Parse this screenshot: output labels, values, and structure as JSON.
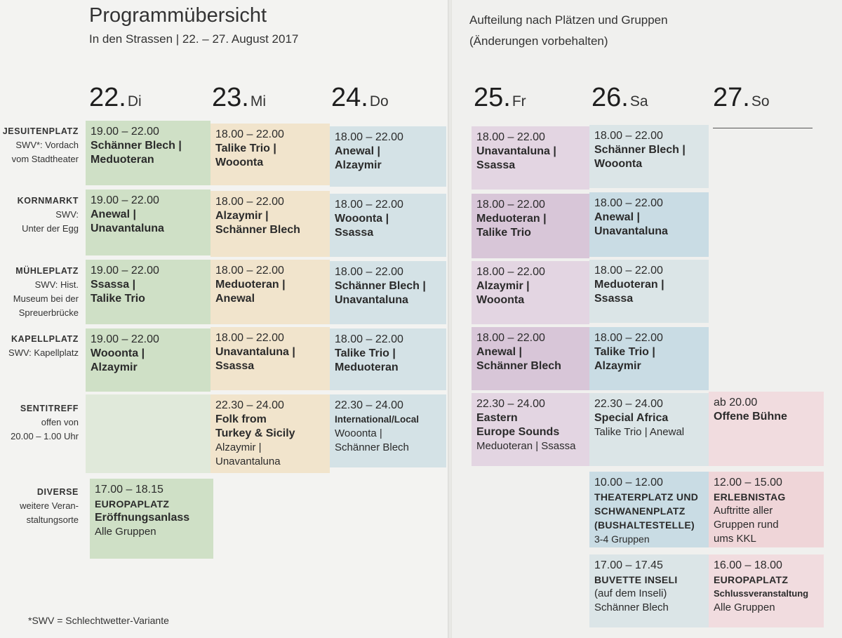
{
  "header": {
    "title": "Programmübersicht",
    "subtitle": "In den Strassen | 22. – 27. August 2017",
    "right_line1": "Aufteilung nach Plätzen und Gruppen",
    "right_line2": "(Änderungen vorbehalten)"
  },
  "days": [
    {
      "num": "22.",
      "name": "Di"
    },
    {
      "num": "23.",
      "name": "Mi"
    },
    {
      "num": "24.",
      "name": "Do"
    },
    {
      "num": "25.",
      "name": "Fr"
    },
    {
      "num": "26.",
      "name": "Sa"
    },
    {
      "num": "27.",
      "name": "So"
    }
  ],
  "venues": [
    {
      "name": "JESUITENPLATZ",
      "l1": "SWV*: Vordach",
      "l2": "vom Stadtheater",
      "l3": ""
    },
    {
      "name": "KORNMARKT",
      "l1": "SWV:",
      "l2": "Unter der Egg",
      "l3": ""
    },
    {
      "name": "MÜHLEPLATZ",
      "l1": "SWV: Hist.",
      "l2": "Museum bei der",
      "l3": "Spreuerbrücke"
    },
    {
      "name": "KAPELLPLATZ",
      "l1": "SWV: Kapellplatz",
      "l2": "",
      "l3": ""
    },
    {
      "name": "SENTITREFF",
      "l1": "offen von",
      "l2": "20.00 – 1.00 Uhr",
      "l3": ""
    },
    {
      "name": "DIVERSE",
      "l1": "weitere Veran-",
      "l2": "staltungsorte",
      "l3": ""
    }
  ],
  "cells": {
    "r1": [
      {
        "time": "19.00 – 22.00",
        "a": "Schänner Blech |",
        "b": "Meduoteran"
      },
      {
        "time": "18.00 – 22.00",
        "a": "Talike Trio |",
        "b": "Wooonta"
      },
      {
        "time": "18.00 – 22.00",
        "a": "Anewal |",
        "b": "Alzaymir"
      },
      {
        "time": "18.00 – 22.00",
        "a": "Unavantaluna |",
        "b": "Ssassa"
      },
      {
        "time": "18.00 – 22.00",
        "a": "Schänner Blech |",
        "b": "Wooonta"
      }
    ],
    "r2": [
      {
        "time": "19.00 – 22.00",
        "a": "Anewal |",
        "b": "Unavantaluna"
      },
      {
        "time": "18.00 – 22.00",
        "a": "Alzaymir |",
        "b": "Schänner Blech"
      },
      {
        "time": "18.00 – 22.00",
        "a": "Wooonta |",
        "b": "Ssassa"
      },
      {
        "time": "18.00 – 22.00",
        "a": "Meduoteran |",
        "b": "Talike Trio"
      },
      {
        "time": "18.00 – 22.00",
        "a": "Anewal |",
        "b": "Unavantaluna"
      }
    ],
    "r3": [
      {
        "time": "19.00 – 22.00",
        "a": "Ssassa |",
        "b": "Talike Trio"
      },
      {
        "time": "18.00 – 22.00",
        "a": "Meduoteran |",
        "b": "Anewal"
      },
      {
        "time": "18.00 – 22.00",
        "a": "Schänner Blech |",
        "b": "Unavantaluna"
      },
      {
        "time": "18.00 – 22.00",
        "a": "Alzaymir |",
        "b": "Wooonta"
      },
      {
        "time": "18.00 – 22.00",
        "a": "Meduoteran |",
        "b": "Ssassa"
      }
    ],
    "r4": [
      {
        "time": "19.00 – 22.00",
        "a": "Wooonta |",
        "b": "Alzaymir"
      },
      {
        "time": "18.00 – 22.00",
        "a": "Unavantaluna |",
        "b": "Ssassa"
      },
      {
        "time": "18.00 – 22.00",
        "a": "Talike Trio |",
        "b": "Meduoteran"
      },
      {
        "time": "18.00 – 22.00",
        "a": "Anewal |",
        "b": "Schänner Blech"
      },
      {
        "time": "18.00 – 22.00",
        "a": "Talike Trio |",
        "b": "Alzaymir"
      }
    ],
    "senti": {
      "mi": {
        "time": "22.30 – 24.00",
        "h1": "Folk from",
        "h2": "Turkey & Sicily",
        "g1": "Alzaymir |",
        "g2": "Unavantaluna"
      },
      "do": {
        "time": "22.30 – 24.00",
        "h1": "International/Local",
        "g1": "Wooonta |",
        "g2": "Schänner Blech"
      },
      "fr": {
        "time": "22.30 – 24.00",
        "h1": "Eastern",
        "h2": "Europe Sounds",
        "g1": "Meduoteran | Ssassa"
      },
      "sa": {
        "time": "22.30 – 24.00",
        "h1": "Special Africa",
        "g1": "Talike Trio | Anewal"
      },
      "so": {
        "time": "ab 20.00",
        "h1": "Offene Bühne"
      }
    },
    "diverse": {
      "di": {
        "time": "17.00 – 18.15",
        "h1": "EUROPAPLATZ",
        "h2": "Eröffnungsanlass",
        "g1": "Alle Gruppen"
      },
      "sa1": {
        "time": "10.00 – 12.00",
        "h1": "THEATERPLATZ UND",
        "h2": "SCHWANENPLATZ",
        "h3": "(BUSHALTESTELLE)",
        "g1": "3-4 Gruppen"
      },
      "so1": {
        "time": "12.00 – 15.00",
        "h1": "ERLEBNISTAG",
        "g1": "Auftritte aller",
        "g2": "Gruppen rund",
        "g3": "ums KKL"
      },
      "sa2": {
        "time": "17.00 – 17.45",
        "h1": "BUVETTE INSELI",
        "g1": "(auf dem Inseli)",
        "g2": "Schänner Blech"
      },
      "so2": {
        "time": "16.00 – 18.00",
        "h1": "EUROPAPLATZ",
        "h2": "Schlussveranstaltung",
        "g1": "Alle Gruppen"
      }
    }
  },
  "footnote": "*SWV = Schlechtwetter-Variante"
}
